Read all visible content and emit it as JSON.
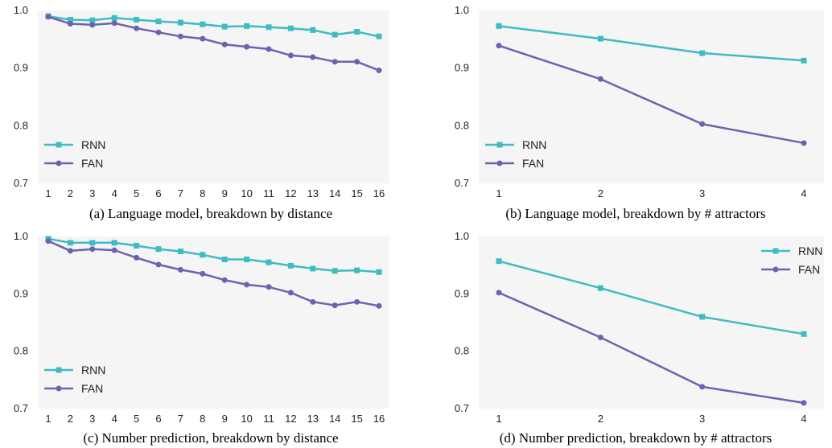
{
  "colors": {
    "rnn": "#3fbbc4",
    "fan": "#6e62b0",
    "panel": "#f5f5f5"
  },
  "chart_data": [
    {
      "type": "line",
      "caption": "(a) Language model, breakdown by distance",
      "x": [
        1,
        2,
        3,
        4,
        5,
        6,
        7,
        8,
        9,
        10,
        11,
        12,
        13,
        14,
        15,
        16
      ],
      "ylim": [
        0.7,
        1.0
      ],
      "yticks": [
        "0.7",
        "0.8",
        "0.9",
        "1.0"
      ],
      "grid": false,
      "legend_position": "lower-left",
      "series": [
        {
          "name": "RNN",
          "marker": "square",
          "values": [
            0.99,
            0.984,
            0.983,
            0.987,
            0.984,
            0.981,
            0.979,
            0.976,
            0.972,
            0.973,
            0.971,
            0.969,
            0.966,
            0.958,
            0.963,
            0.955
          ]
        },
        {
          "name": "FAN",
          "marker": "circle",
          "values": [
            0.989,
            0.977,
            0.975,
            0.978,
            0.969,
            0.962,
            0.955,
            0.951,
            0.941,
            0.937,
            0.933,
            0.922,
            0.919,
            0.911,
            0.911,
            0.896
          ]
        }
      ]
    },
    {
      "type": "line",
      "caption": "(b) Language model, breakdown by # attractors",
      "x": [
        1,
        2,
        3,
        4
      ],
      "ylim": [
        0.7,
        1.0
      ],
      "yticks": [
        "0.7",
        "0.8",
        "0.9",
        "1.0"
      ],
      "grid": false,
      "legend_position": "lower-left",
      "series": [
        {
          "name": "RNN",
          "marker": "square",
          "values": [
            0.973,
            0.951,
            0.926,
            0.913
          ]
        },
        {
          "name": "FAN",
          "marker": "circle",
          "values": [
            0.939,
            0.881,
            0.803,
            0.77
          ]
        }
      ]
    },
    {
      "type": "line",
      "caption": "(c) Number prediction, breakdown by distance",
      "x": [
        1,
        2,
        3,
        4,
        5,
        6,
        7,
        8,
        9,
        10,
        11,
        12,
        13,
        14,
        15,
        16
      ],
      "ylim": [
        0.7,
        1.0
      ],
      "yticks": [
        "0.7",
        "0.8",
        "0.9",
        "1.0"
      ],
      "grid": false,
      "legend_position": "lower-left",
      "series": [
        {
          "name": "RNN",
          "marker": "square",
          "values": [
            0.996,
            0.989,
            0.989,
            0.989,
            0.984,
            0.978,
            0.974,
            0.968,
            0.96,
            0.96,
            0.955,
            0.949,
            0.944,
            0.94,
            0.941,
            0.938
          ]
        },
        {
          "name": "FAN",
          "marker": "circle",
          "values": [
            0.992,
            0.975,
            0.978,
            0.976,
            0.963,
            0.951,
            0.942,
            0.935,
            0.924,
            0.916,
            0.912,
            0.902,
            0.886,
            0.88,
            0.886,
            0.879
          ]
        }
      ]
    },
    {
      "type": "line",
      "caption": "(d) Number prediction, breakdown by # attractors",
      "x": [
        1,
        2,
        3,
        4
      ],
      "ylim": [
        0.7,
        1.0
      ],
      "yticks": [
        "0.7",
        "0.8",
        "0.9",
        "1.0"
      ],
      "grid": false,
      "legend_position": "upper-right",
      "series": [
        {
          "name": "RNN",
          "marker": "square",
          "values": [
            0.957,
            0.91,
            0.86,
            0.83
          ]
        },
        {
          "name": "FAN",
          "marker": "circle",
          "values": [
            0.902,
            0.824,
            0.738,
            0.71
          ]
        }
      ]
    }
  ]
}
